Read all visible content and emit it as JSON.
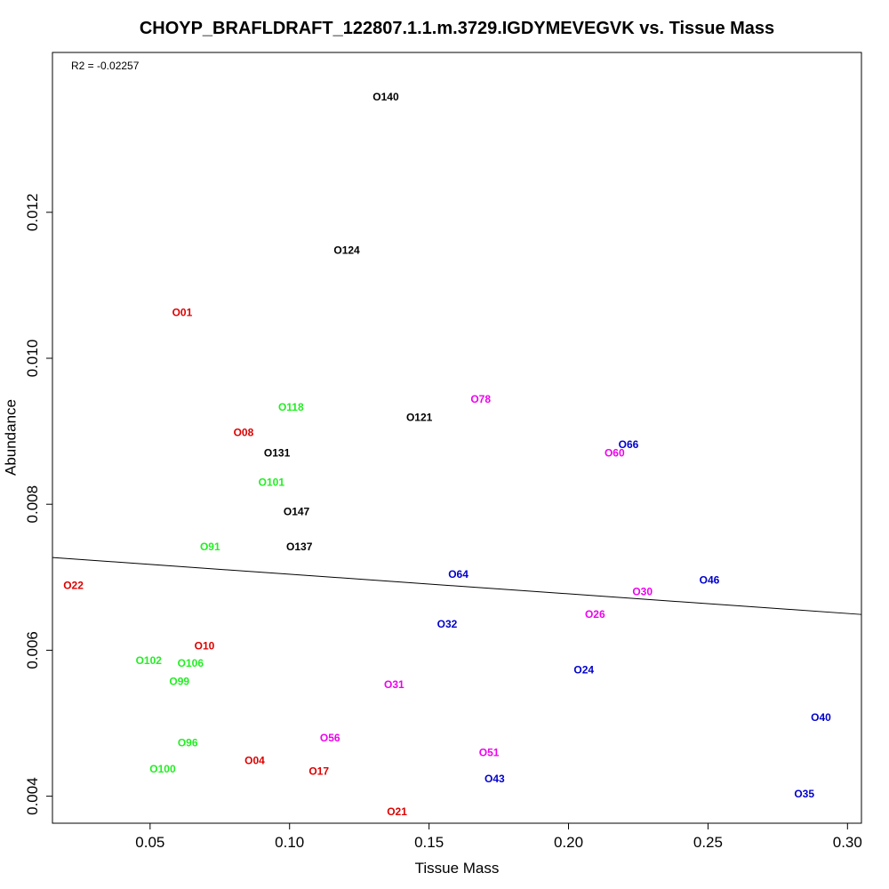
{
  "chart_data": {
    "type": "scatter",
    "title": "CHOYP_BRAFLDRAFT_122807.1.1.m.3729.IGDYMEVEGVK vs. Tissue Mass",
    "xlabel": "Tissue Mass",
    "ylabel": "Abundance",
    "xlim": [
      0.015,
      0.305
    ],
    "ylim": [
      0.00363,
      0.01419
    ],
    "x_ticks": [
      0.05,
      0.1,
      0.15,
      0.2,
      0.25,
      0.3
    ],
    "x_tick_labels": [
      "0.05",
      "0.10",
      "0.15",
      "0.20",
      "0.25",
      "0.30"
    ],
    "y_ticks": [
      0.004,
      0.006,
      0.008,
      0.01,
      0.012
    ],
    "y_tick_labels": [
      "0.004",
      "0.006",
      "0.008",
      "0.010",
      "0.012"
    ],
    "annotation": "R2 = -0.02257",
    "grid": false,
    "regression_line": {
      "x": [
        0.015,
        0.305
      ],
      "y": [
        0.00727,
        0.00649
      ]
    },
    "colors": {
      "red": "#dd0000",
      "green": "#22ee22",
      "black": "#000000",
      "magenta": "#ee00ee",
      "blue": "#0000cc"
    },
    "points": [
      {
        "label": "O01",
        "x": 0.0615,
        "y": 0.01062,
        "color": "red"
      },
      {
        "label": "O04",
        "x": 0.0875,
        "y": 0.00448,
        "color": "red"
      },
      {
        "label": "O08",
        "x": 0.0835,
        "y": 0.00897,
        "color": "red"
      },
      {
        "label": "O10",
        "x": 0.0695,
        "y": 0.00605,
        "color": "red"
      },
      {
        "label": "O17",
        "x": 0.1105,
        "y": 0.00433,
        "color": "red"
      },
      {
        "label": "O21",
        "x": 0.1385,
        "y": 0.00378,
        "color": "red"
      },
      {
        "label": "O22",
        "x": 0.0225,
        "y": 0.00688,
        "color": "red"
      },
      {
        "label": "O91",
        "x": 0.0715,
        "y": 0.00741,
        "color": "green"
      },
      {
        "label": "O96",
        "x": 0.0635,
        "y": 0.00472,
        "color": "green"
      },
      {
        "label": "O99",
        "x": 0.0605,
        "y": 0.00556,
        "color": "green"
      },
      {
        "label": "O100",
        "x": 0.0545,
        "y": 0.00436,
        "color": "green"
      },
      {
        "label": "O101",
        "x": 0.0935,
        "y": 0.00829,
        "color": "green"
      },
      {
        "label": "O102",
        "x": 0.0495,
        "y": 0.00585,
        "color": "green"
      },
      {
        "label": "O106",
        "x": 0.0645,
        "y": 0.00581,
        "color": "green"
      },
      {
        "label": "O118",
        "x": 0.1005,
        "y": 0.00932,
        "color": "green"
      },
      {
        "label": "O121",
        "x": 0.1465,
        "y": 0.00918,
        "color": "black"
      },
      {
        "label": "O124",
        "x": 0.1205,
        "y": 0.01147,
        "color": "black"
      },
      {
        "label": "O131",
        "x": 0.0955,
        "y": 0.00869,
        "color": "black"
      },
      {
        "label": "O137",
        "x": 0.1035,
        "y": 0.00741,
        "color": "black"
      },
      {
        "label": "O140",
        "x": 0.1345,
        "y": 0.01357,
        "color": "black"
      },
      {
        "label": "O147",
        "x": 0.1025,
        "y": 0.00789,
        "color": "black"
      },
      {
        "label": "O26",
        "x": 0.2095,
        "y": 0.00648,
        "color": "magenta"
      },
      {
        "label": "O30",
        "x": 0.2265,
        "y": 0.00679,
        "color": "magenta"
      },
      {
        "label": "O31",
        "x": 0.1375,
        "y": 0.00552,
        "color": "magenta"
      },
      {
        "label": "O51",
        "x": 0.1715,
        "y": 0.00459,
        "color": "magenta"
      },
      {
        "label": "O56",
        "x": 0.1145,
        "y": 0.00479,
        "color": "magenta"
      },
      {
        "label": "O60",
        "x": 0.2165,
        "y": 0.00869,
        "color": "magenta"
      },
      {
        "label": "O78",
        "x": 0.1685,
        "y": 0.00943,
        "color": "magenta"
      },
      {
        "label": "O24",
        "x": 0.2055,
        "y": 0.00572,
        "color": "blue"
      },
      {
        "label": "O32",
        "x": 0.1565,
        "y": 0.00635,
        "color": "blue"
      },
      {
        "label": "O35",
        "x": 0.2845,
        "y": 0.00402,
        "color": "blue"
      },
      {
        "label": "O40",
        "x": 0.2905,
        "y": 0.00507,
        "color": "blue"
      },
      {
        "label": "O43",
        "x": 0.1735,
        "y": 0.00423,
        "color": "blue"
      },
      {
        "label": "O46",
        "x": 0.2505,
        "y": 0.00695,
        "color": "blue"
      },
      {
        "label": "O64",
        "x": 0.1605,
        "y": 0.00703,
        "color": "blue"
      },
      {
        "label": "O66",
        "x": 0.2215,
        "y": 0.00881,
        "color": "blue"
      }
    ]
  }
}
